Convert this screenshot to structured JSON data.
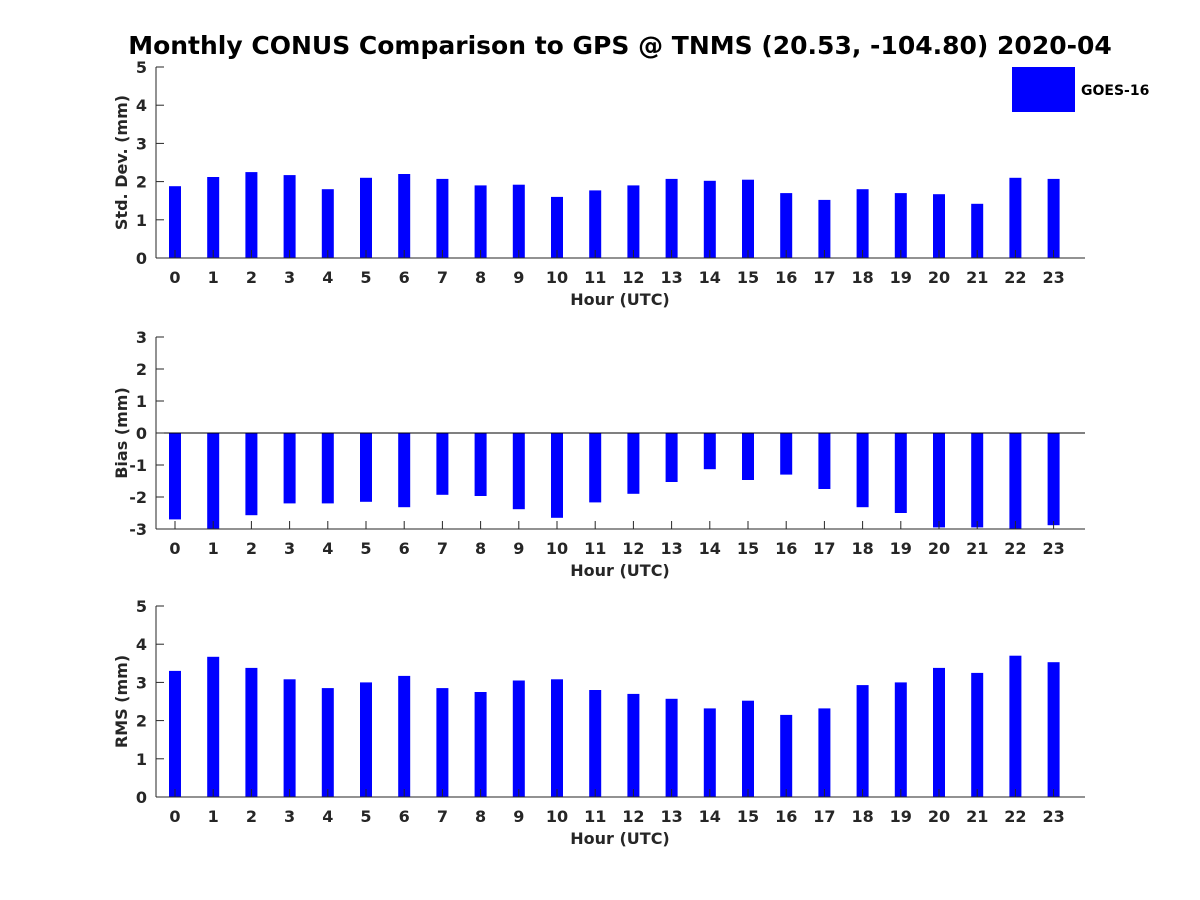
{
  "title": "Monthly CONUS Comparison to GPS @ TNMS (20.53, -104.80) 2020-04",
  "legend": {
    "label": "GOES-16",
    "color": "#0000ff"
  },
  "chart_data": [
    {
      "type": "bar",
      "name": "std-dev",
      "xlabel": "Hour (UTC)",
      "ylabel": "Std. Dev. (mm)",
      "ylim": [
        0,
        5
      ],
      "yticks": [
        0,
        1,
        2,
        3,
        4,
        5
      ],
      "zero_line": false,
      "legend": "top-right",
      "categories": [
        "0",
        "1",
        "2",
        "3",
        "4",
        "5",
        "6",
        "7",
        "8",
        "9",
        "10",
        "11",
        "12",
        "13",
        "14",
        "15",
        "16",
        "17",
        "18",
        "19",
        "20",
        "21",
        "22",
        "23"
      ],
      "series": [
        {
          "name": "GOES-16",
          "color": "#0000ff",
          "values": [
            1.88,
            2.12,
            2.25,
            2.17,
            1.8,
            2.1,
            2.2,
            2.07,
            1.9,
            1.92,
            1.6,
            1.77,
            1.9,
            2.07,
            2.02,
            2.05,
            1.7,
            1.52,
            1.8,
            1.7,
            1.67,
            1.42,
            2.1,
            2.07
          ]
        }
      ]
    },
    {
      "type": "bar",
      "name": "bias",
      "xlabel": "Hour (UTC)",
      "ylabel": "Bias (mm)",
      "ylim": [
        -3,
        3
      ],
      "yticks": [
        -3,
        -2,
        -1,
        0,
        1,
        2,
        3
      ],
      "zero_line": true,
      "categories": [
        "0",
        "1",
        "2",
        "3",
        "4",
        "5",
        "6",
        "7",
        "8",
        "9",
        "10",
        "11",
        "12",
        "13",
        "14",
        "15",
        "16",
        "17",
        "18",
        "19",
        "20",
        "21",
        "22",
        "23"
      ],
      "series": [
        {
          "name": "GOES-16",
          "color": "#0000ff",
          "values": [
            -2.7,
            -3.1,
            -2.57,
            -2.2,
            -2.2,
            -2.15,
            -2.32,
            -1.93,
            -1.97,
            -2.38,
            -2.65,
            -2.17,
            -1.9,
            -1.53,
            -1.13,
            -1.47,
            -1.3,
            -1.75,
            -2.32,
            -2.5,
            -2.95,
            -2.95,
            -3.1,
            -2.88
          ]
        }
      ]
    },
    {
      "type": "bar",
      "name": "rms",
      "xlabel": "Hour (UTC)",
      "ylabel": "RMS (mm)",
      "ylim": [
        0,
        5
      ],
      "yticks": [
        0,
        1,
        2,
        3,
        4,
        5
      ],
      "zero_line": false,
      "categories": [
        "0",
        "1",
        "2",
        "3",
        "4",
        "5",
        "6",
        "7",
        "8",
        "9",
        "10",
        "11",
        "12",
        "13",
        "14",
        "15",
        "16",
        "17",
        "18",
        "19",
        "20",
        "21",
        "22",
        "23"
      ],
      "series": [
        {
          "name": "GOES-16",
          "color": "#0000ff",
          "values": [
            3.3,
            3.67,
            3.38,
            3.08,
            2.85,
            3.0,
            3.17,
            2.85,
            2.75,
            3.05,
            3.08,
            2.8,
            2.7,
            2.57,
            2.32,
            2.52,
            2.15,
            2.32,
            2.93,
            3.0,
            3.38,
            3.25,
            3.7,
            3.53
          ]
        }
      ]
    }
  ]
}
